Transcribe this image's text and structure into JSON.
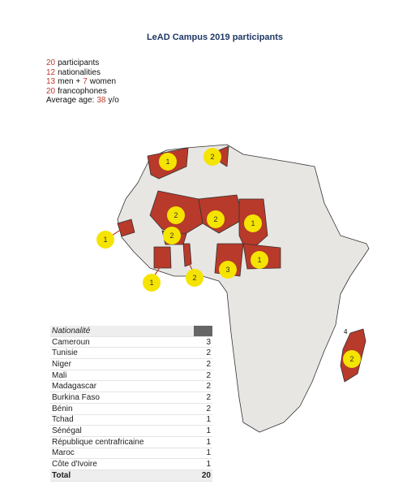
{
  "title": "LeAD Campus 2019 participants",
  "stats": [
    [
      {
        "number": 20
      },
      {
        "text": "participants"
      }
    ],
    [
      {
        "number": 12
      },
      {
        "text": "nationalities"
      }
    ],
    [
      {
        "number": 13
      },
      {
        "text": "men +"
      },
      {
        "number": 7
      },
      {
        "text": "women"
      }
    ],
    [
      {
        "number": 20
      },
      {
        "text": "francophones"
      }
    ],
    [
      {
        "text": "Average age:"
      },
      {
        "number": 38
      },
      {
        "text": "y/o"
      }
    ]
  ],
  "map": {
    "markers": [
      1,
      2,
      2,
      2,
      1,
      1,
      2,
      1,
      2,
      3,
      1,
      2
    ],
    "stray_label": "4"
  },
  "table": {
    "header": "Nationalité",
    "rows": [
      [
        "Cameroun",
        3
      ],
      [
        "Tunisie",
        2
      ],
      [
        "Niger",
        2
      ],
      [
        "Mali",
        2
      ],
      [
        "Madagascar",
        2
      ],
      [
        "Burkina Faso",
        2
      ],
      [
        "Bénin",
        2
      ],
      [
        "Tchad",
        1
      ],
      [
        "Sénégal",
        1
      ],
      [
        "République centrafricaine",
        1
      ],
      [
        "Maroc",
        1
      ],
      [
        "Côte d'Ivoire",
        1
      ]
    ],
    "total": {
      "label": "Total",
      "value": 20
    }
  }
}
